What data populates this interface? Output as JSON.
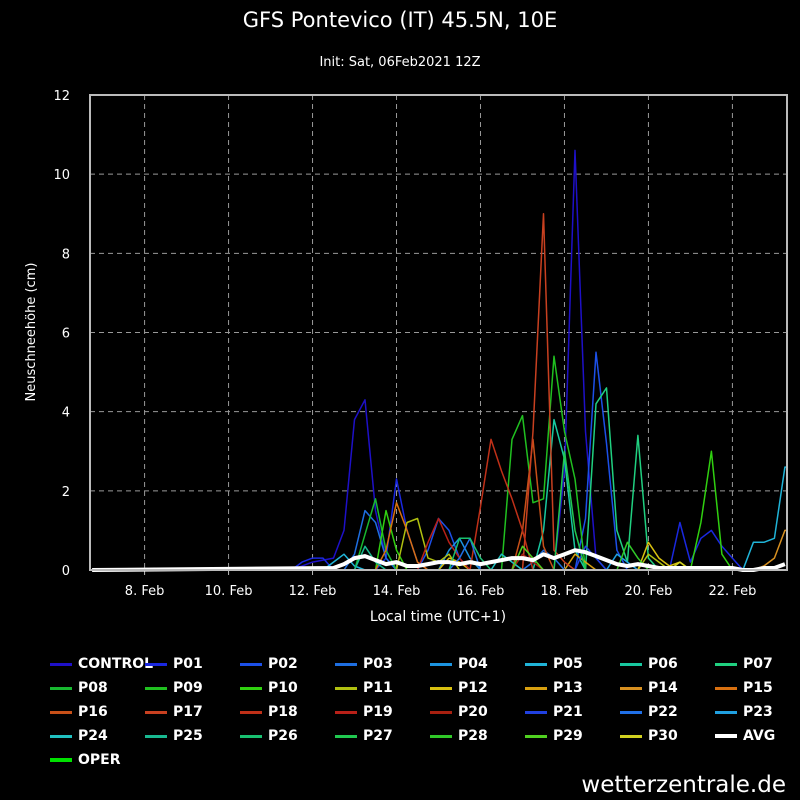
{
  "chart_data": {
    "type": "line",
    "title": "GFS Pontevico (IT) 45.5N, 10E",
    "subtitle": "Init: Sat, 06Feb2021 12Z",
    "xlabel": "Local time (UTC+1)",
    "ylabel": "Neuschneehöhe (cm)",
    "ylim": [
      0,
      12
    ],
    "yticks": [
      "0",
      "2",
      "4",
      "6",
      "8",
      "10",
      "12"
    ],
    "xlim": [
      6.7,
      23.3
    ],
    "xticks": [
      {
        "x": 8,
        "label": "8. Feb"
      },
      {
        "x": 10,
        "label": "10. Feb"
      },
      {
        "x": 12,
        "label": "12. Feb"
      },
      {
        "x": 14,
        "label": "14. Feb"
      },
      {
        "x": 16,
        "label": "16. Feb"
      },
      {
        "x": 18,
        "label": "18. Feb"
      },
      {
        "x": 20,
        "label": "20. Feb"
      },
      {
        "x": 22,
        "label": "22. Feb"
      }
    ],
    "grid": true,
    "legend_position": "bottom",
    "series": [
      {
        "name": "CONTROL",
        "color": "#1e10c8",
        "x": [
          6.75,
          11.5,
          12.0,
          12.5,
          12.75,
          13.0,
          13.25,
          13.5,
          13.75,
          14.0,
          17.75,
          18.0,
          18.25,
          18.5,
          18.75,
          19.0,
          23.3
        ],
        "y": [
          0,
          0,
          0.2,
          0.3,
          1.0,
          3.8,
          4.3,
          1.5,
          0.3,
          0,
          0,
          2.5,
          10.6,
          3.5,
          0.3,
          0,
          0
        ]
      },
      {
        "name": "P01",
        "color": "#1a28e0",
        "x": [
          6.75,
          11.5,
          11.75,
          12.0,
          12.25,
          12.5,
          13.5,
          13.75,
          14.0,
          14.25,
          14.5,
          14.75,
          16.0,
          20.5,
          20.75,
          21.0,
          21.25,
          21.5,
          21.75,
          22.0,
          22.25,
          23.3
        ],
        "y": [
          0,
          0,
          0.2,
          0.3,
          0.3,
          0,
          0,
          0.3,
          2.3,
          1.0,
          0.2,
          0,
          0,
          0,
          1.2,
          0.2,
          0.8,
          1.0,
          0.6,
          0.3,
          0,
          0
        ]
      },
      {
        "name": "P02",
        "color": "#1c50e8",
        "x": [
          6.75,
          14.5,
          14.75,
          15.0,
          15.25,
          15.5,
          15.75,
          18.25,
          18.5,
          18.75,
          19.0,
          19.25,
          19.5,
          23.3
        ],
        "y": [
          0,
          0,
          0.5,
          1.3,
          1.0,
          0.3,
          0,
          0,
          1.3,
          5.5,
          3.2,
          0.5,
          0,
          0
        ]
      },
      {
        "name": "P03",
        "color": "#1e6ee0",
        "x": [
          6.75,
          12.75,
          13.0,
          13.25,
          13.5,
          13.75,
          14.0,
          17.0,
          17.25,
          17.5,
          17.75,
          18.0,
          23.3
        ],
        "y": [
          0,
          0,
          0.4,
          1.5,
          1.2,
          0.3,
          0,
          0,
          0.2,
          0.5,
          0.3,
          0,
          0
        ]
      },
      {
        "name": "P04",
        "color": "#1c94e0",
        "x": [
          6.75,
          15.0,
          15.25,
          15.5,
          15.75,
          16.0,
          23.3
        ],
        "y": [
          0,
          0,
          0.5,
          0.8,
          0.3,
          0,
          0
        ]
      },
      {
        "name": "P05",
        "color": "#20b4d8",
        "x": [
          6.75,
          12.25,
          12.5,
          12.75,
          13.0,
          13.25,
          22.25,
          22.5,
          22.75,
          23.0,
          23.25,
          23.3
        ],
        "y": [
          0,
          0,
          0.2,
          0.4,
          0.1,
          0,
          0,
          0.7,
          0.7,
          0.8,
          2.6,
          2.6
        ]
      },
      {
        "name": "P06",
        "color": "#18c8a0",
        "x": [
          6.75,
          17.25,
          17.5,
          17.75,
          18.0,
          18.25,
          18.5,
          23.3
        ],
        "y": [
          0,
          0,
          1.0,
          3.8,
          2.8,
          0.5,
          0,
          0
        ]
      },
      {
        "name": "P07",
        "color": "#20d080",
        "x": [
          6.75,
          18.5,
          18.75,
          19.0,
          19.25,
          19.5,
          19.75,
          20.0,
          20.25,
          23.3
        ],
        "y": [
          0,
          0,
          4.2,
          4.6,
          1.0,
          0.2,
          3.4,
          0.3,
          0,
          0
        ]
      },
      {
        "name": "P08",
        "color": "#18b830",
        "x": [
          6.75,
          13.0,
          13.25,
          13.5,
          13.75,
          14.0,
          23.3
        ],
        "y": [
          0,
          0,
          0.9,
          1.8,
          0.5,
          0,
          0
        ]
      },
      {
        "name": "P09",
        "color": "#20c020",
        "x": [
          6.75,
          16.5,
          16.75,
          17.0,
          17.25,
          17.5,
          17.75,
          18.0,
          18.25,
          18.5,
          23.3
        ],
        "y": [
          0,
          0,
          3.3,
          3.9,
          1.7,
          1.8,
          5.4,
          3.5,
          2.3,
          0,
          0
        ]
      },
      {
        "name": "P10",
        "color": "#30d010",
        "x": [
          6.75,
          13.5,
          13.75,
          14.0,
          14.25,
          21.0,
          21.25,
          21.5,
          21.75,
          22.0,
          23.3
        ],
        "y": [
          0,
          0,
          1.5,
          0.5,
          0,
          0,
          1.2,
          3.0,
          0.4,
          0,
          0
        ]
      },
      {
        "name": "P11",
        "color": "#b0c010",
        "x": [
          6.75,
          14.0,
          14.25,
          14.5,
          14.75,
          15.0,
          15.25,
          15.5,
          19.75,
          20.0,
          20.25,
          20.5,
          23.3
        ],
        "y": [
          0,
          0,
          1.2,
          1.3,
          0.3,
          0.2,
          0.4,
          0,
          0,
          0.4,
          0.2,
          0,
          0
        ]
      },
      {
        "name": "P12",
        "color": "#d8c010",
        "x": [
          6.75,
          15.0,
          15.25,
          15.5,
          15.75,
          19.75,
          20.0,
          20.25,
          20.5,
          20.75,
          21.0,
          23.3
        ],
        "y": [
          0,
          0,
          0.3,
          0.2,
          0,
          0,
          0.7,
          0.3,
          0.1,
          0.2,
          0,
          0
        ]
      },
      {
        "name": "P13",
        "color": "#d8a010",
        "x": [
          6.75,
          18.0,
          18.25,
          18.5,
          18.75,
          23.3
        ],
        "y": [
          0,
          0,
          0.4,
          0.2,
          0,
          0
        ]
      },
      {
        "name": "P14",
        "color": "#d89020",
        "x": [
          6.75,
          22.5,
          22.75,
          23.0,
          23.25,
          23.3
        ],
        "y": [
          0,
          0,
          0.1,
          0.3,
          1.0,
          1.0
        ]
      },
      {
        "name": "P15",
        "color": "#d87010",
        "x": [
          6.75,
          13.5,
          13.75,
          14.0,
          14.25,
          14.5,
          14.75,
          23.3
        ],
        "y": [
          0,
          0,
          0.5,
          1.7,
          1.0,
          0.2,
          0,
          0
        ]
      },
      {
        "name": "P16",
        "color": "#c85018",
        "x": [
          6.75,
          16.75,
          17.0,
          17.25,
          17.5,
          17.75,
          23.3
        ],
        "y": [
          0,
          0,
          1.0,
          3.3,
          0.6,
          0,
          0
        ]
      },
      {
        "name": "P17",
        "color": "#c84020",
        "x": [
          6.75,
          17.0,
          17.25,
          17.5,
          17.75,
          18.0,
          18.25,
          23.3
        ],
        "y": [
          0,
          0,
          3.5,
          9.0,
          0.5,
          0.2,
          0,
          0
        ]
      },
      {
        "name": "P18",
        "color": "#c03018",
        "x": [
          6.75,
          15.75,
          16.0,
          16.25,
          16.5,
          16.75,
          17.0,
          17.25,
          23.3
        ],
        "y": [
          0,
          0,
          1.6,
          3.3,
          2.5,
          1.8,
          1.0,
          0,
          0
        ]
      },
      {
        "name": "P19",
        "color": "#b82018",
        "x": [
          6.75,
          14.5,
          14.75,
          15.0,
          15.25,
          15.5,
          15.75,
          23.3
        ],
        "y": [
          0,
          0,
          0.7,
          1.3,
          0.7,
          0.3,
          0,
          0
        ]
      },
      {
        "name": "P20",
        "color": "#a82010",
        "x": [
          6.75,
          16.75,
          17.0,
          17.25,
          17.5,
          23.3
        ],
        "y": [
          0,
          0,
          0.4,
          0.2,
          0,
          0
        ]
      },
      {
        "name": "P21",
        "color": "#2040e0",
        "x": [
          6.75,
          18.25,
          18.5,
          18.75,
          19.0,
          23.3
        ],
        "y": [
          0,
          0,
          0.6,
          0.3,
          0,
          0
        ]
      },
      {
        "name": "P22",
        "color": "#2070e8",
        "x": [
          6.75,
          15.25,
          15.5,
          15.75,
          16.0,
          23.3
        ],
        "y": [
          0,
          0,
          0.3,
          0.8,
          0,
          0
        ]
      },
      {
        "name": "P23",
        "color": "#20a0e0",
        "x": [
          6.75,
          19.0,
          19.25,
          19.5,
          19.75,
          23.3
        ],
        "y": [
          0,
          0,
          0.4,
          0.2,
          0,
          0
        ]
      },
      {
        "name": "P24",
        "color": "#20c0c0",
        "x": [
          6.75,
          16.25,
          16.5,
          16.75,
          17.0,
          23.3
        ],
        "y": [
          0,
          0,
          0.4,
          0.2,
          0,
          0
        ]
      },
      {
        "name": "P25",
        "color": "#18b890",
        "x": [
          6.75,
          13.0,
          13.25,
          13.5,
          13.75,
          23.3
        ],
        "y": [
          0,
          0,
          0.6,
          0.2,
          0,
          0
        ]
      },
      {
        "name": "P26",
        "color": "#18c070",
        "x": [
          6.75,
          15.25,
          15.5,
          15.75,
          16.0,
          16.25,
          23.3
        ],
        "y": [
          0,
          0,
          0.8,
          0.8,
          0.3,
          0,
          0
        ]
      },
      {
        "name": "P27",
        "color": "#20c850",
        "x": [
          6.75,
          17.75,
          18.0,
          18.25,
          18.5,
          23.3
        ],
        "y": [
          0,
          0,
          3.0,
          1.0,
          0,
          0
        ]
      },
      {
        "name": "P28",
        "color": "#30c828",
        "x": [
          6.75,
          19.25,
          19.5,
          19.75,
          20.0,
          23.3
        ],
        "y": [
          0,
          0,
          0.7,
          0.3,
          0,
          0
        ]
      },
      {
        "name": "P29",
        "color": "#50d020",
        "x": [
          6.75,
          16.75,
          17.0,
          17.25,
          17.5,
          23.3
        ],
        "y": [
          0,
          0,
          0.6,
          0.3,
          0,
          0
        ]
      },
      {
        "name": "P30",
        "color": "#d0d020",
        "x": [
          6.75,
          20.5,
          20.75,
          21.0,
          23.3
        ],
        "y": [
          0,
          0,
          0.2,
          0,
          0
        ]
      },
      {
        "name": "AVG",
        "color": "#ffffff",
        "width": 4,
        "x": [
          6.75,
          12.5,
          12.75,
          13.0,
          13.25,
          13.5,
          13.75,
          14.0,
          14.25,
          14.5,
          14.75,
          15.0,
          15.25,
          15.5,
          15.75,
          16.0,
          16.25,
          16.5,
          16.75,
          17.0,
          17.25,
          17.5,
          17.75,
          18.0,
          18.25,
          18.5,
          18.75,
          19.0,
          19.25,
          19.5,
          19.75,
          20.0,
          20.25,
          20.5,
          20.75,
          21.0,
          21.25,
          21.5,
          21.75,
          22.0,
          22.25,
          22.5,
          22.75,
          23.0,
          23.25
        ],
        "y": [
          0,
          0.05,
          0.15,
          0.3,
          0.35,
          0.25,
          0.15,
          0.2,
          0.1,
          0.1,
          0.15,
          0.2,
          0.2,
          0.15,
          0.2,
          0.15,
          0.2,
          0.25,
          0.3,
          0.3,
          0.25,
          0.4,
          0.3,
          0.4,
          0.5,
          0.45,
          0.35,
          0.25,
          0.15,
          0.1,
          0.15,
          0.1,
          0.05,
          0.05,
          0.05,
          0.05,
          0.05,
          0.05,
          0.05,
          0.05,
          0,
          0,
          0.05,
          0.05,
          0.15
        ]
      },
      {
        "name": "OPER",
        "color": "#00e000",
        "width": 4,
        "x": [],
        "y": []
      }
    ]
  },
  "watermark": "wetterzentrale.de"
}
